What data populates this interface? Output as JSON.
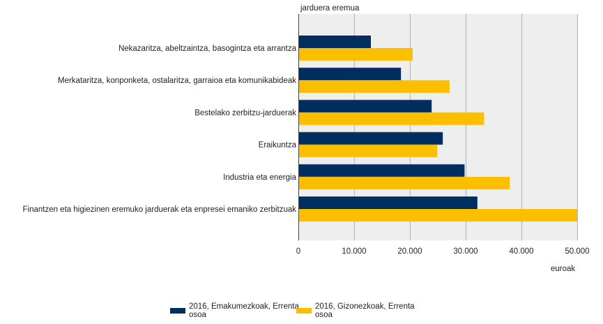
{
  "chart_data": {
    "type": "bar",
    "orientation": "horizontal",
    "title": "",
    "ylabel": "jarduera eremua",
    "xlabel": "euroak",
    "xlim": [
      0,
      50000
    ],
    "xticks": [
      0,
      10000,
      20000,
      30000,
      40000,
      50000
    ],
    "xtick_labels": [
      "0",
      "10.000",
      "20.000",
      "30.000",
      "40.000",
      "50.000"
    ],
    "grid": true,
    "legend_position": "bottom",
    "categories": [
      "Nekazaritza, abeltzaintza, basogintza eta arrantza",
      "Merkataritza, konponketa, ostalaritza, garraioa eta komunikabideak",
      "Bestelako zerbitzu-jarduerak",
      "Eraikuntza",
      "Industria eta energia",
      "Finantzen eta higiezinen eremuko jarduerak eta enpresei emaniko zerbitzuak"
    ],
    "series": [
      {
        "name": "2016, Emakumezkoak, Errenta osoa",
        "legend_lines": [
          "2016, Emakumezkoak, Errenta",
          "osoa"
        ],
        "color": "#002e5e",
        "values": [
          13000,
          18400,
          23900,
          25900,
          29800,
          32100
        ]
      },
      {
        "name": "2016, Gizonezkoak, Errenta osoa",
        "legend_lines": [
          "2016, Gizonezkoak, Errenta",
          "osoa"
        ],
        "color": "#fcbf00",
        "values": [
          20500,
          27100,
          33300,
          24900,
          37900,
          50000
        ]
      }
    ]
  }
}
